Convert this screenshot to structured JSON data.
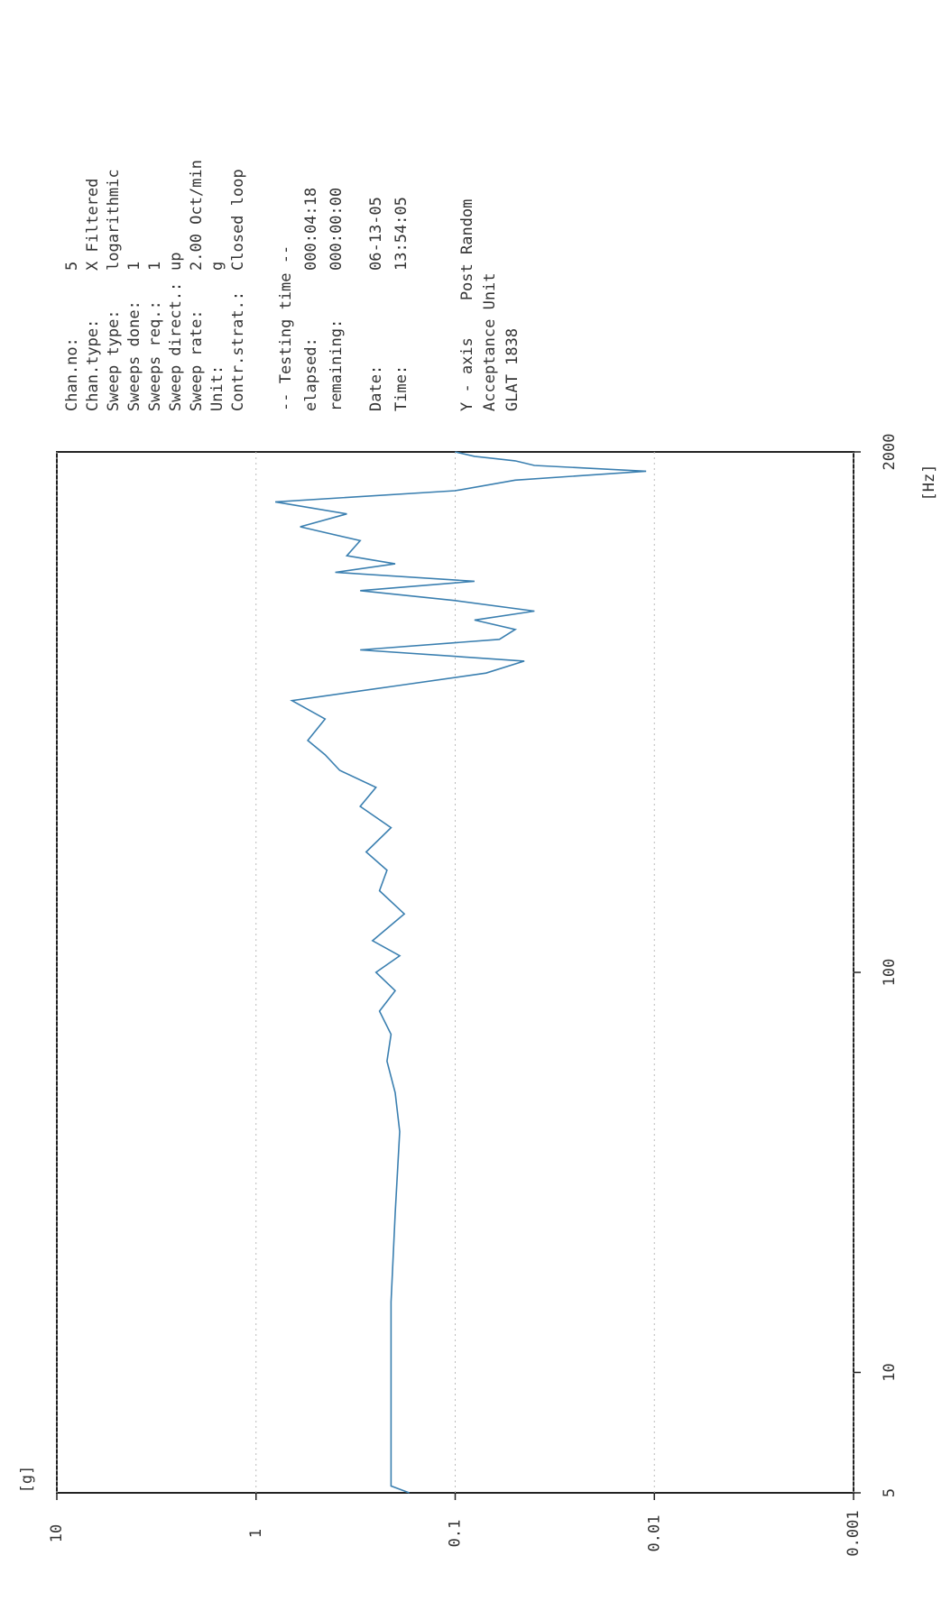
{
  "chart_data": {
    "type": "line",
    "x_label": "[Hz]",
    "y_label": "[g]",
    "xlog": true,
    "ylog": true,
    "grid": true,
    "xlim": [
      5,
      2000
    ],
    "ylim": [
      0.001,
      10
    ],
    "xticks": [
      5,
      10,
      100,
      2000
    ],
    "yticks": [
      10,
      1,
      0.1,
      0.01,
      0.001
    ],
    "series": [
      {
        "color": "#3a7fb0",
        "x": [
          5,
          5.2,
          8,
          15,
          25,
          40,
          50,
          60,
          70,
          80,
          90,
          100,
          110,
          120,
          140,
          160,
          180,
          200,
          230,
          260,
          290,
          320,
          350,
          380,
          430,
          478,
          520,
          560,
          600,
          640,
          680,
          720,
          760,
          800,
          850,
          900,
          950,
          1000,
          1050,
          1100,
          1200,
          1300,
          1400,
          1500,
          1600,
          1700,
          1790,
          1850,
          1900,
          1950,
          2000
        ],
        "values": [
          0.17,
          0.21,
          0.21,
          0.21,
          0.2,
          0.19,
          0.2,
          0.22,
          0.21,
          0.24,
          0.2,
          0.25,
          0.19,
          0.26,
          0.18,
          0.24,
          0.22,
          0.28,
          0.21,
          0.3,
          0.25,
          0.38,
          0.45,
          0.55,
          0.45,
          0.66,
          0.2,
          0.07,
          0.045,
          0.3,
          0.06,
          0.05,
          0.08,
          0.04,
          0.1,
          0.3,
          0.08,
          0.4,
          0.2,
          0.35,
          0.3,
          0.6,
          0.35,
          0.8,
          0.1,
          0.05,
          0.011,
          0.04,
          0.05,
          0.08,
          0.1
        ]
      }
    ]
  },
  "info": {
    "rows": [
      [
        "Chan.no:",
        "5"
      ],
      [
        "Chan.type:",
        "X Filtered"
      ],
      [
        "Sweep type:",
        "logarithmic"
      ],
      [
        "Sweeps done:",
        "1"
      ],
      [
        "Sweeps req.:",
        "1"
      ],
      [
        "Sweep direct.:",
        "up"
      ],
      [
        "Sweep rate:",
        "2.00 Oct/min"
      ],
      [
        "Unit:",
        "g"
      ],
      [
        "Contr.strat.:",
        "Closed loop"
      ]
    ],
    "testing_title": "-- Testing time --",
    "testing_rows": [
      [
        "elapsed:",
        "000:04:18"
      ],
      [
        "remaining:",
        "000:00:00"
      ]
    ],
    "date_rows": [
      [
        "Date:",
        "06-13-05"
      ],
      [
        "Time:",
        "13:54:05"
      ]
    ],
    "notes": [
      "Y - axis    Post Random",
      "Acceptance Unit",
      "GLAT 1838"
    ]
  }
}
